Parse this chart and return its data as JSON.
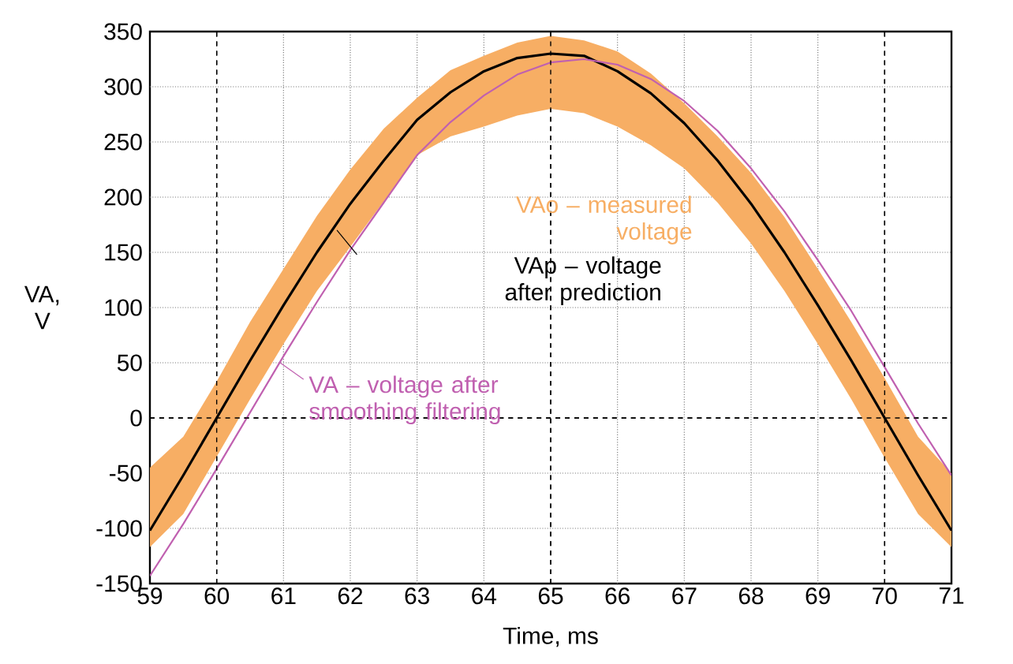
{
  "chart_data": {
    "type": "line",
    "xlabel": "Time, ms",
    "ylabel": "VA, V",
    "x": [
      59,
      59.5,
      60,
      60.5,
      61,
      61.5,
      62,
      62.5,
      63,
      63.5,
      64,
      64.5,
      65,
      65.5,
      66,
      66.5,
      67,
      67.5,
      68,
      68.5,
      69,
      69.5,
      70,
      70.5,
      71
    ],
    "series": [
      {
        "name": "VAo – measured voltage",
        "color": "#f7ae64",
        "values": [
          null,
          null,
          null,
          null,
          null,
          null,
          null,
          null,
          null,
          null,
          null,
          null,
          null,
          null,
          null,
          null,
          null,
          null,
          null,
          null,
          null,
          null,
          null,
          null,
          null
        ],
        "lower": [
          -117,
          -87,
          -35,
          17,
          67,
          115,
          155,
          196,
          238,
          255,
          264,
          274,
          280,
          276,
          264,
          247,
          226,
          195,
          158,
          115,
          67,
          17,
          -36,
          -87,
          -117
        ],
        "upper": [
          -45,
          -17,
          33,
          87,
          135,
          183,
          225,
          262,
          290,
          315,
          328,
          340,
          346,
          342,
          332,
          312,
          285,
          255,
          222,
          182,
          135,
          87,
          36,
          -17,
          -50
        ]
      },
      {
        "name": "VAp – voltage after prediction",
        "color": "#000000",
        "values": [
          -102,
          -52,
          0,
          52,
          102,
          150,
          194,
          233,
          270,
          295,
          314,
          326,
          330,
          328,
          314,
          294,
          267,
          233,
          194,
          150,
          102,
          52,
          0,
          -52,
          -102
        ]
      },
      {
        "name": "VA – voltage after smoothing filtering",
        "color": "#c060b0",
        "values": [
          -143,
          -96,
          -46,
          5,
          56,
          105,
          152,
          195,
          238,
          268,
          292,
          311,
          322,
          325,
          320,
          307,
          287,
          260,
          226,
          187,
          143,
          97,
          46,
          -5,
          -52
        ]
      }
    ],
    "xlim": [
      59,
      71
    ],
    "ylim": [
      -150,
      350
    ],
    "xticks": [
      59,
      60,
      61,
      62,
      63,
      64,
      65,
      66,
      67,
      68,
      69,
      70,
      71
    ],
    "yticks": [
      -150,
      -100,
      -50,
      0,
      50,
      100,
      150,
      200,
      250,
      300,
      350
    ],
    "grid": true,
    "marker": "none",
    "line_style": "solid"
  }
}
